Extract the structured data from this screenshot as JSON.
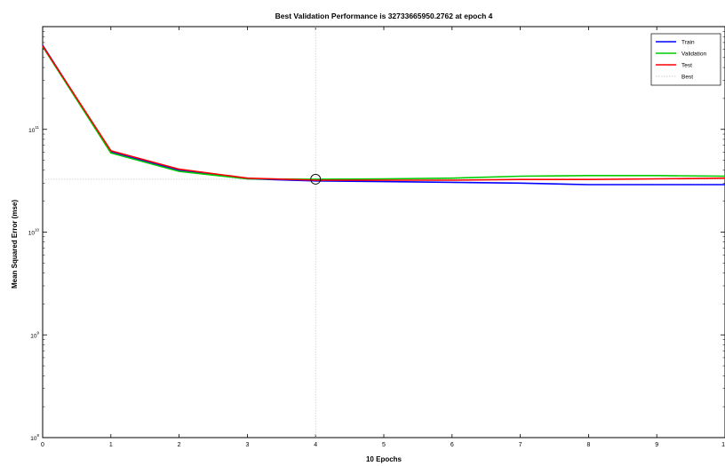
{
  "chart_data": {
    "type": "line",
    "title": "Best Validation Performance is 32733665950.2762 at epoch 4",
    "xlabel": "10 Epochs",
    "ylabel": "Mean Squared Error  (mse)",
    "xlim": [
      0,
      10
    ],
    "ylim": [
      100000000.0,
      1000000000000.0
    ],
    "yscale": "log",
    "x_ticks": [
      "0",
      "1",
      "2",
      "3",
      "4",
      "5",
      "6",
      "7",
      "8",
      "9",
      "10"
    ],
    "y_ticks": [
      {
        "base": "10",
        "exp": "8",
        "value": 100000000.0
      },
      {
        "base": "10",
        "exp": "9",
        "value": 1000000000.0
      },
      {
        "base": "10",
        "exp": "10",
        "value": 10000000000.0
      },
      {
        "base": "10",
        "exp": "11",
        "value": 100000000000.0
      }
    ],
    "x": [
      0,
      1,
      2,
      3,
      4,
      5,
      6,
      7,
      8,
      9,
      10
    ],
    "series": [
      {
        "name": "Train",
        "color": "#0000ff",
        "values": [
          660000000000.0,
          60000000000.0,
          40000000000.0,
          33000000000.0,
          31500000000.0,
          31000000000.0,
          30500000000.0,
          30000000000.0,
          29000000000.0,
          29000000000.0,
          29000000000.0
        ]
      },
      {
        "name": "Validation",
        "color": "#00cc00",
        "values": [
          640000000000.0,
          59000000000.0,
          39000000000.0,
          33000000000.0,
          32700000000.0,
          33000000000.0,
          33500000000.0,
          35000000000.0,
          35500000000.0,
          35500000000.0,
          35000000000.0
        ]
      },
      {
        "name": "Test",
        "color": "#ff0000",
        "values": [
          650000000000.0,
          62000000000.0,
          41000000000.0,
          33500000000.0,
          32000000000.0,
          32000000000.0,
          32000000000.0,
          32500000000.0,
          32500000000.0,
          33000000000.0,
          33500000000.0
        ]
      }
    ],
    "best": {
      "name": "Best",
      "epoch": 4,
      "value": 32733665950.2762,
      "color": "#bbbbbb"
    },
    "legend_position": "top-right",
    "grid": false
  }
}
